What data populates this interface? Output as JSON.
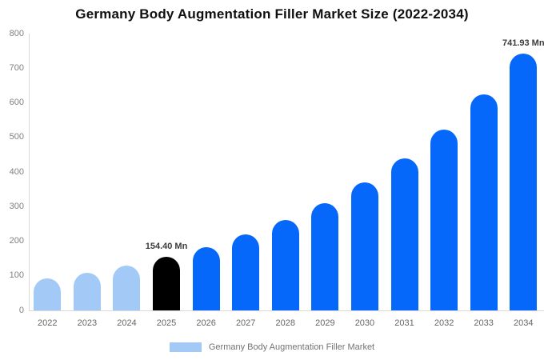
{
  "title": "Germany Body Augmentation Filler Market Size (2022-2034)",
  "legend": {
    "label": "Germany Body Augmentation Filler Market"
  },
  "colors": {
    "history_bar": "#a3c9f7",
    "base_year_bar": "#000000",
    "forecast_bar": "#0667fb",
    "axis_line": "#d9d9d9",
    "ytick_text": "#808080",
    "xtick_text": "#666666",
    "annotation_text": "#3b3b3b",
    "title_text": "#0f0f0f",
    "background": "#ffffff"
  },
  "chart_data": {
    "type": "bar",
    "title": "Germany Body Augmentation Filler Market Size (2022-2034)",
    "unit": "Mn",
    "categories": [
      "2022",
      "2023",
      "2024",
      "2025",
      "2026",
      "2027",
      "2028",
      "2029",
      "2030",
      "2031",
      "2032",
      "2033",
      "2034"
    ],
    "values": [
      91.5,
      108.9,
      129.7,
      154.4,
      183.8,
      218.9,
      260.6,
      310.2,
      369.3,
      439.7,
      523.5,
      623.2,
      741.93
    ],
    "bar_roles": [
      "history",
      "history",
      "history",
      "base_year",
      "forecast",
      "forecast",
      "forecast",
      "forecast",
      "forecast",
      "forecast",
      "forecast",
      "forecast",
      "forecast"
    ],
    "labeled_points": [
      {
        "category": "2025",
        "label": "154.40 Mn"
      },
      {
        "category": "2034",
        "label": "741.93 Mn"
      }
    ],
    "xlabel": "",
    "ylabel": "",
    "ylim": [
      0,
      800
    ],
    "yticks": [
      0,
      100,
      200,
      300,
      400,
      500,
      600,
      700,
      800
    ],
    "grid": false,
    "legend_position": "bottom",
    "legend_entries": [
      "Germany Body Augmentation Filler Market"
    ]
  }
}
